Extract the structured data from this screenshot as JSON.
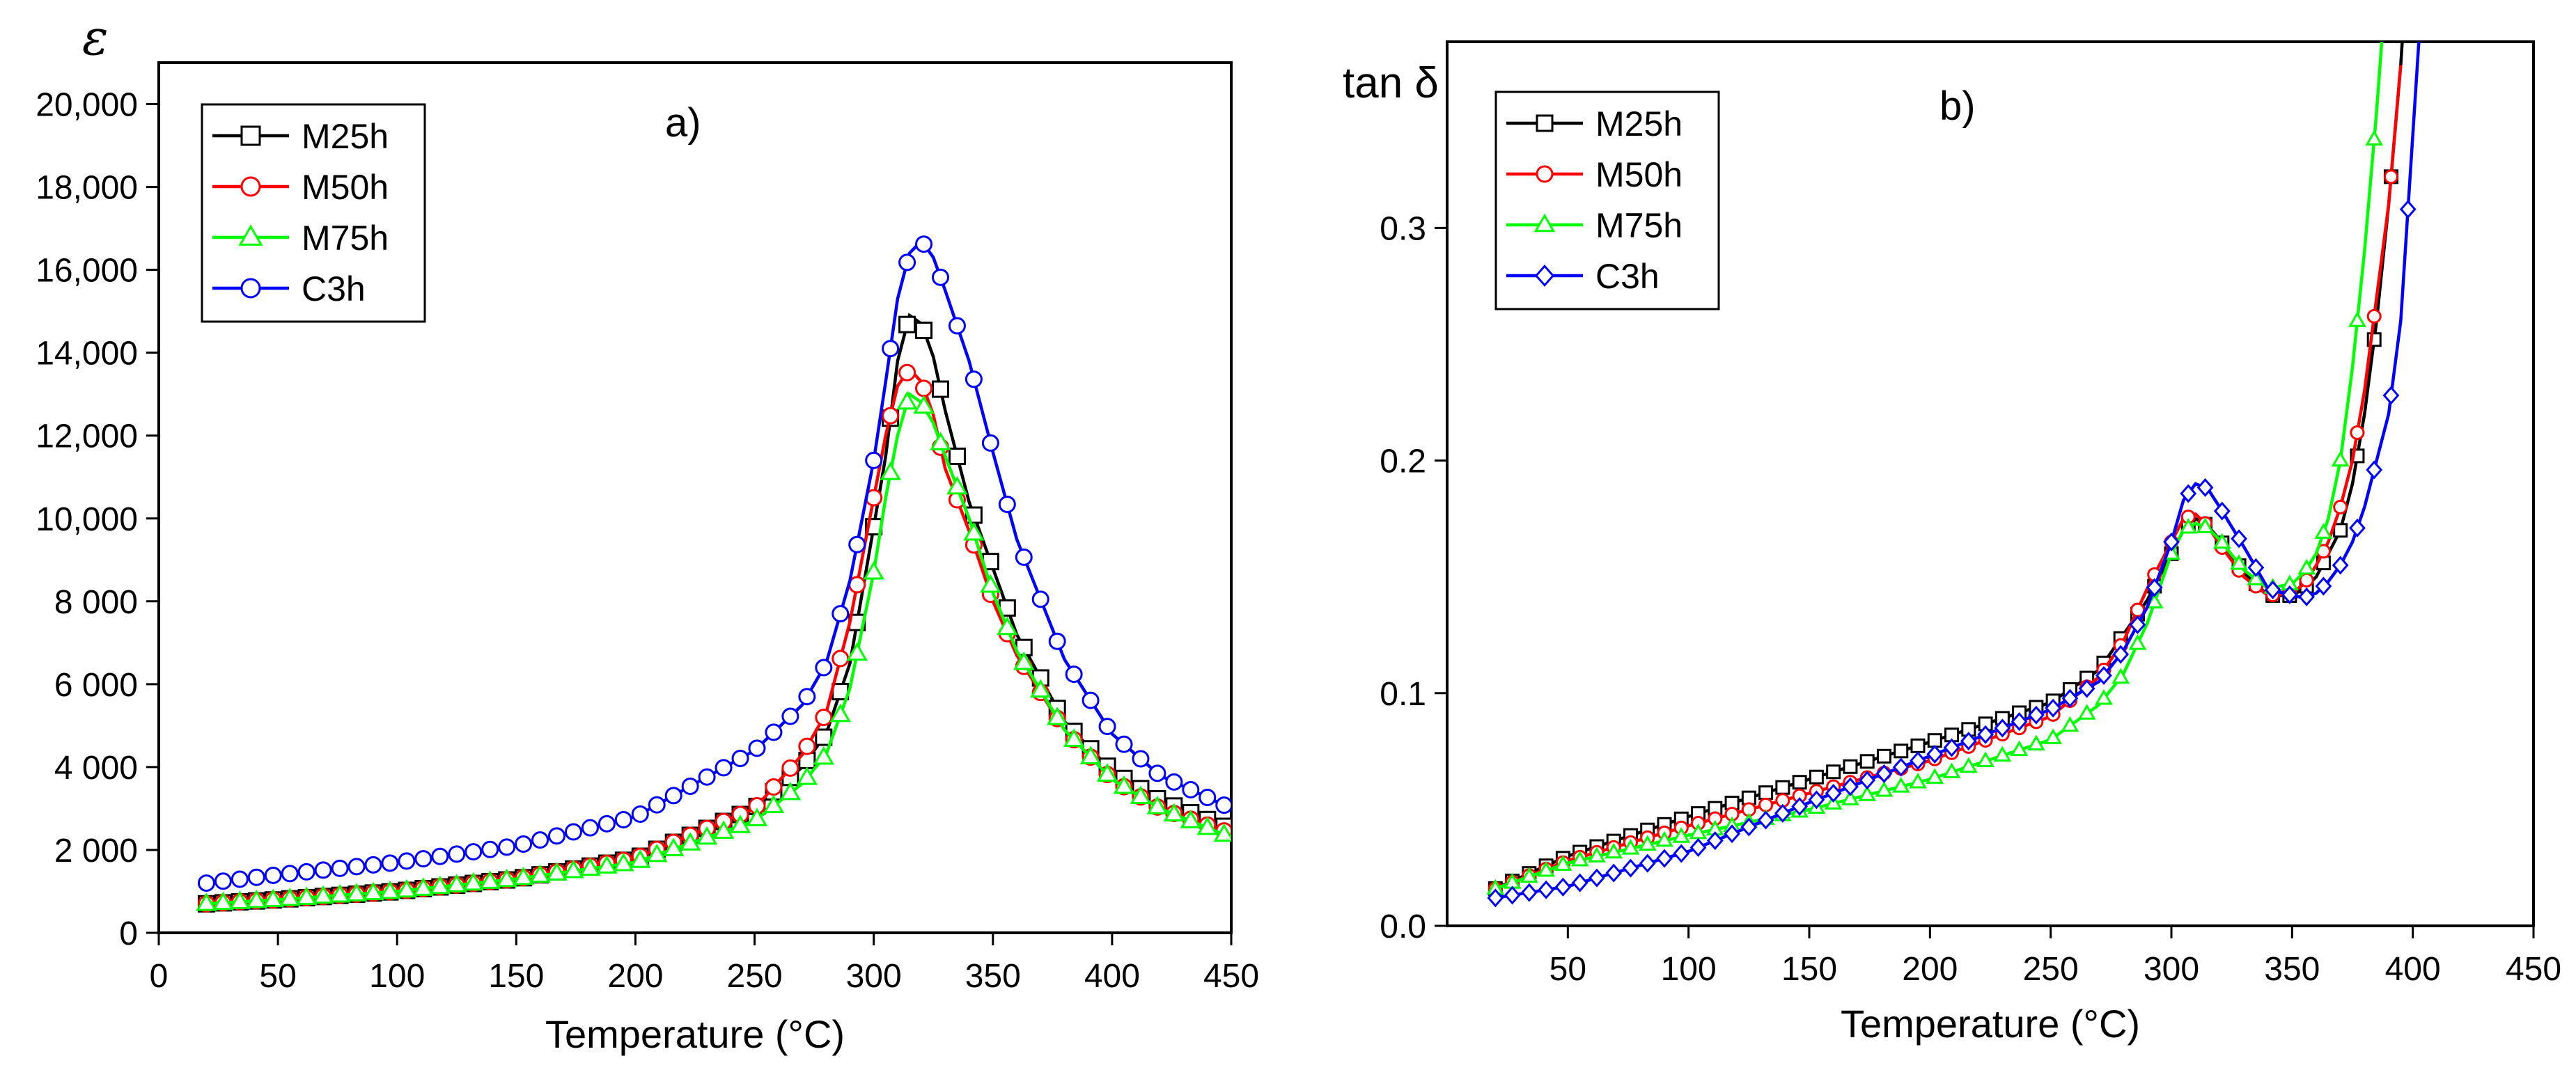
{
  "chart_data": [
    {
      "type": "line",
      "panel_label": "a)",
      "ylabel": "ε",
      "xlabel": "Temperature (°C)",
      "xlim": [
        0,
        450
      ],
      "ylim": [
        0,
        21000
      ],
      "x_ticks": [
        0,
        50,
        100,
        150,
        200,
        250,
        300,
        350,
        400,
        450
      ],
      "y_ticks": [
        0,
        2000,
        4000,
        6000,
        8000,
        10000,
        12000,
        14000,
        16000,
        18000,
        20000
      ],
      "y_tick_labels": [
        "0",
        "2 000",
        "4 000",
        "6 000",
        "8 000",
        "10,000",
        "12,000",
        "14,000",
        "16,000",
        "18,000",
        "20,000"
      ],
      "x_tick_labels": [
        "0",
        "50",
        "100",
        "150",
        "200",
        "250",
        "300",
        "350",
        "400",
        "450"
      ],
      "grid": false,
      "legend_position": "top-left",
      "series": [
        {
          "name": "M25h",
          "color": "#000000",
          "marker": "square",
          "x": [
            20,
            50,
            100,
            150,
            200,
            250,
            270,
            280,
            290,
            300,
            305,
            310,
            315,
            320,
            325,
            330,
            340,
            350,
            360,
            380,
            400,
            420,
            450
          ],
          "y": [
            700,
            800,
            1000,
            1300,
            1800,
            3000,
            4000,
            4800,
            6500,
            9800,
            11500,
            13800,
            14900,
            14700,
            13900,
            12600,
            10400,
            8800,
            7200,
            5100,
            3900,
            3200,
            2500
          ]
        },
        {
          "name": "M50h",
          "color": "#ff0000",
          "marker": "circle",
          "x": [
            20,
            50,
            100,
            150,
            200,
            250,
            270,
            280,
            290,
            300,
            305,
            310,
            315,
            320,
            325,
            330,
            340,
            350,
            360,
            380,
            400,
            420,
            450
          ],
          "y": [
            700,
            800,
            1000,
            1300,
            1800,
            3000,
            4300,
            5300,
            7500,
            10500,
            12000,
            13200,
            13600,
            13300,
            12500,
            11200,
            9700,
            8000,
            6700,
            4900,
            3700,
            3000,
            2400
          ]
        },
        {
          "name": "M75h",
          "color": "#00ff00",
          "marker": "triangle",
          "x": [
            20,
            50,
            100,
            150,
            200,
            250,
            270,
            280,
            290,
            300,
            305,
            310,
            315,
            320,
            325,
            330,
            340,
            350,
            360,
            380,
            400,
            420,
            450
          ],
          "y": [
            700,
            800,
            1000,
            1300,
            1700,
            2700,
            3600,
            4300,
            5900,
            8700,
            10500,
            12000,
            13000,
            12800,
            12300,
            11500,
            10000,
            8200,
            6800,
            4900,
            3700,
            3000,
            2300
          ]
        },
        {
          "name": "C3h",
          "color": "#0000ff",
          "marker": "circle",
          "x": [
            20,
            50,
            100,
            150,
            200,
            250,
            270,
            280,
            290,
            300,
            305,
            310,
            315,
            320,
            325,
            330,
            340,
            350,
            360,
            380,
            400,
            420,
            450
          ],
          "y": [
            1200,
            1400,
            1700,
            2100,
            2800,
            4400,
            5500,
            6500,
            8500,
            11400,
            13300,
            15300,
            16400,
            16700,
            16300,
            15500,
            13800,
            11600,
            9500,
            6600,
            4800,
            3800,
            3000
          ]
        }
      ]
    },
    {
      "type": "line",
      "panel_label": "b)",
      "ylabel": "tan δ",
      "xlabel": "Temperature (°C)",
      "xlim": [
        0,
        450
      ],
      "ylim": [
        0,
        0.38
      ],
      "x_ticks": [
        50,
        100,
        150,
        200,
        250,
        300,
        350,
        400,
        450
      ],
      "y_ticks": [
        0,
        0.1,
        0.2,
        0.3
      ],
      "y_tick_labels": [
        "0.0",
        "0.1",
        "0.2",
        "0.3"
      ],
      "x_tick_labels": [
        "50",
        "100",
        "150",
        "200",
        "250",
        "300",
        "350",
        "400",
        "450"
      ],
      "grid": false,
      "legend_position": "top-left",
      "series": [
        {
          "name": "M25h",
          "color": "#000000",
          "marker": "square",
          "x": [
            20,
            50,
            100,
            150,
            200,
            250,
            270,
            280,
            290,
            300,
            305,
            310,
            315,
            320,
            330,
            340,
            350,
            355,
            360,
            365,
            370,
            375,
            380,
            385,
            390,
            395,
            400
          ],
          "y": [
            0.016,
            0.03,
            0.047,
            0.063,
            0.079,
            0.096,
            0.11,
            0.125,
            0.14,
            0.16,
            0.17,
            0.175,
            0.172,
            0.166,
            0.152,
            0.142,
            0.142,
            0.145,
            0.15,
            0.16,
            0.17,
            0.19,
            0.22,
            0.26,
            0.31,
            0.37,
            0.45
          ]
        },
        {
          "name": "M50h",
          "color": "#ff0000",
          "marker": "circle",
          "x": [
            20,
            50,
            100,
            150,
            200,
            250,
            270,
            280,
            290,
            300,
            305,
            310,
            315,
            320,
            330,
            340,
            350,
            355,
            360,
            365,
            370,
            375,
            380,
            385,
            390,
            395
          ],
          "y": [
            0.016,
            0.028,
            0.043,
            0.057,
            0.071,
            0.09,
            0.107,
            0.122,
            0.145,
            0.165,
            0.175,
            0.177,
            0.172,
            0.164,
            0.15,
            0.142,
            0.143,
            0.147,
            0.155,
            0.165,
            0.18,
            0.2,
            0.23,
            0.27,
            0.31,
            0.37
          ]
        },
        {
          "name": "M75h",
          "color": "#00ff00",
          "marker": "triangle",
          "x": [
            20,
            50,
            100,
            150,
            200,
            250,
            270,
            280,
            290,
            300,
            305,
            310,
            315,
            320,
            330,
            340,
            350,
            355,
            360,
            365,
            370,
            375,
            380,
            385,
            390
          ],
          "y": [
            0.016,
            0.027,
            0.039,
            0.05,
            0.063,
            0.08,
            0.095,
            0.108,
            0.13,
            0.16,
            0.17,
            0.173,
            0.171,
            0.166,
            0.153,
            0.145,
            0.147,
            0.152,
            0.16,
            0.175,
            0.2,
            0.24,
            0.29,
            0.35,
            0.42
          ]
        },
        {
          "name": "C3h",
          "color": "#0000ff",
          "marker": "diamond",
          "x": [
            20,
            50,
            100,
            150,
            200,
            250,
            270,
            280,
            290,
            300,
            305,
            310,
            315,
            320,
            330,
            340,
            350,
            355,
            360,
            365,
            370,
            375,
            380,
            385,
            390,
            395,
            400,
            405
          ],
          "y": [
            0.012,
            0.017,
            0.032,
            0.053,
            0.073,
            0.093,
            0.105,
            0.118,
            0.137,
            0.165,
            0.183,
            0.19,
            0.188,
            0.18,
            0.163,
            0.145,
            0.142,
            0.141,
            0.143,
            0.148,
            0.155,
            0.165,
            0.18,
            0.2,
            0.22,
            0.26,
            0.34,
            0.42
          ]
        }
      ]
    }
  ]
}
